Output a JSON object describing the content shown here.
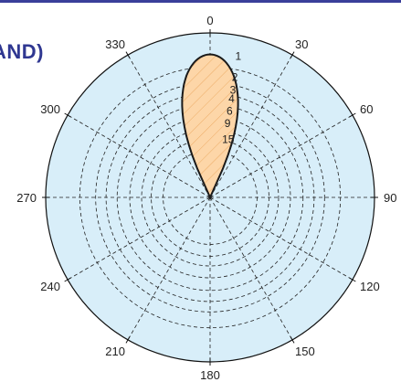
{
  "header": {
    "visible_title_fragment": "AND)"
  },
  "chart_data": {
    "type": "polar",
    "angle_labels": [
      "0",
      "30",
      "60",
      "90",
      "120",
      "150",
      "180",
      "210",
      "240",
      "270",
      "300",
      "330"
    ],
    "angle_values": [
      0,
      30,
      60,
      90,
      120,
      150,
      180,
      210,
      240,
      270,
      300,
      330
    ],
    "angle_direction": "clockwise",
    "zero_position": "top",
    "radial_scale": "log",
    "radial_labels": [
      "1",
      "2",
      "3",
      "4",
      "6",
      "9",
      "15"
    ],
    "radial_values": [
      1,
      2,
      3,
      4,
      6,
      9,
      15
    ],
    "radial_range": [
      0.5,
      100
    ],
    "lobe": {
      "center_angle_deg": 0,
      "max_value": 1,
      "half_width_deg": 25,
      "fill_color": "#fdd6a8",
      "hatch": "diagonal",
      "stroke_color": "#1a1a1a"
    },
    "grid": true,
    "colors": {
      "background": "#d8eef9",
      "grid": "#222222",
      "accent": "#2f3791"
    }
  }
}
